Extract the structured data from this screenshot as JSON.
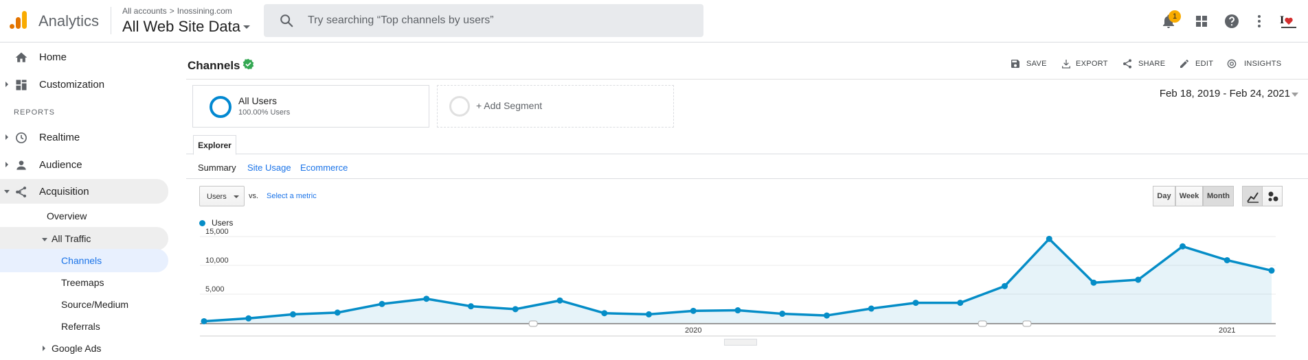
{
  "app": {
    "name": "Analytics"
  },
  "account": {
    "path_root": "All accounts",
    "path_sep": ">",
    "property": "Inossining.com",
    "view": "All Web Site Data"
  },
  "search": {
    "placeholder": "Try searching “Top channels by users”"
  },
  "topbar": {
    "notifications_count": "1",
    "avatar_text": "I❤"
  },
  "sidebar": {
    "reports_header": "REPORTS",
    "items": [
      {
        "label": "Home",
        "icon": "home-icon"
      },
      {
        "label": "Customization",
        "icon": "dashboard-icon"
      },
      {
        "label": "Realtime",
        "icon": "clock-icon"
      },
      {
        "label": "Audience",
        "icon": "person-icon"
      },
      {
        "label": "Acquisition",
        "icon": "acquisition-icon"
      }
    ],
    "acquisition_sub": {
      "overview": "Overview",
      "all_traffic": "All Traffic",
      "channels": "Channels",
      "treemaps": "Treemaps",
      "source_medium": "Source/Medium",
      "referrals": "Referrals",
      "google_ads": "Google Ads"
    }
  },
  "page": {
    "title": "Channels",
    "actions": {
      "save": "SAVE",
      "export": "EXPORT",
      "share": "SHARE",
      "edit": "EDIT",
      "insights": "INSIGHTS"
    },
    "segments": {
      "all_users": "All Users",
      "all_users_pct": "100.00% Users",
      "add_segment": "+ Add Segment"
    },
    "date_range": "Feb 18, 2019 - Feb 24, 2021",
    "tab": "Explorer",
    "subtabs": {
      "summary": "Summary",
      "site_usage": "Site Usage",
      "ecommerce": "Ecommerce"
    },
    "metric": "Users",
    "vs": "vs.",
    "select_metric": "Select a metric",
    "granularity": {
      "day": "Day",
      "week": "Week",
      "month": "Month",
      "selected": "Month"
    },
    "legend": "Users"
  },
  "colors": {
    "series": "#058dc7",
    "accent": "#1a73e8",
    "badge": "#f9ab00"
  },
  "chart_data": {
    "type": "area",
    "series": [
      {
        "name": "Users",
        "x": [
          "Feb 2019",
          "Mar 2019",
          "Apr 2019",
          "May 2019",
          "Jun 2019",
          "Jul 2019",
          "Aug 2019",
          "Sep 2019",
          "Oct 2019",
          "Nov 2019",
          "Dec 2019",
          "Jan 2020",
          "Feb 2020",
          "Mar 2020",
          "Apr 2020",
          "May 2020",
          "Jun 2020",
          "Jul 2020",
          "Aug 2020",
          "Sep 2020",
          "Oct 2020",
          "Nov 2020",
          "Dec 2020",
          "Jan 2021",
          "Feb 2021"
        ],
        "values": [
          300,
          800,
          1500,
          1800,
          3300,
          4200,
          2900,
          2400,
          3900,
          1700,
          1500,
          2100,
          2200,
          1600,
          1300,
          2500,
          3500,
          3500,
          6400,
          14600,
          7000,
          7500,
          13300,
          10900,
          9100
        ]
      }
    ],
    "y_ticks": [
      "15,000",
      "10,000",
      "5,000"
    ],
    "ylim": [
      0,
      15000
    ],
    "x_tick_labels": [
      {
        "label": "2020",
        "at": "Jan 2020"
      },
      {
        "label": "2021",
        "at": "Jan 2021"
      }
    ],
    "grid": true
  }
}
